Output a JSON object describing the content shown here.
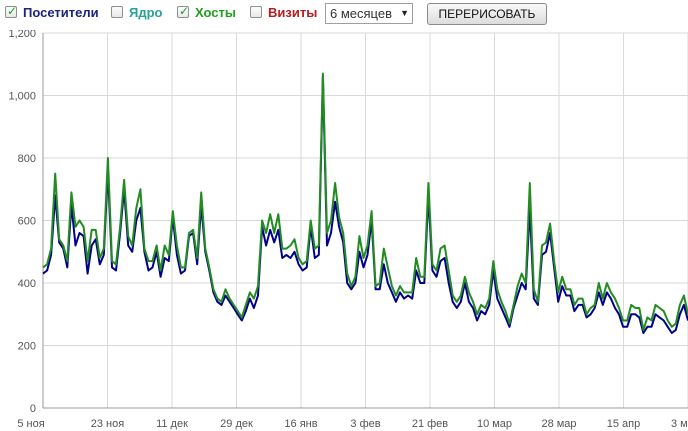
{
  "controls": {
    "visitors": {
      "label": "Посетители",
      "checked": true,
      "color": "#1a237e"
    },
    "core": {
      "label": "Ядро",
      "checked": false,
      "color": "#2aa198"
    },
    "hosts": {
      "label": "Хосты",
      "checked": true,
      "color": "#1e9e1e"
    },
    "visits": {
      "label": "Визиты",
      "checked": false,
      "color": "#b71c1c"
    },
    "period": {
      "value": "6 месяцев"
    },
    "redraw_label": "ПЕРЕРИСОВАТЬ"
  },
  "chart_data": {
    "type": "line",
    "ylim": [
      0,
      1200
    ],
    "yticks": [
      0,
      200,
      400,
      600,
      800,
      1000,
      1200
    ],
    "ytick_labels": [
      "0",
      "200",
      "400",
      "600",
      "800",
      "1,000",
      "1,200"
    ],
    "x_start": "5 ноя",
    "x_ticks": [
      "5 ноя",
      "23 ноя",
      "11 дек",
      "29 дек",
      "16 янв",
      "3 фев",
      "21 фев",
      "10 мар",
      "28 мар",
      "15 апр",
      "3 ма"
    ],
    "x_tick_days": [
      0,
      18,
      36,
      54,
      72,
      90,
      108,
      126,
      144,
      162,
      180
    ],
    "grid": true,
    "series": [
      {
        "color": "#00008b",
        "values": [
          430,
          440,
          490,
          680,
          530,
          510,
          450,
          650,
          520,
          560,
          550,
          430,
          520,
          540,
          460,
          490,
          760,
          450,
          440,
          560,
          700,
          520,
          500,
          600,
          640,
          500,
          440,
          450,
          500,
          420,
          480,
          470,
          610,
          490,
          430,
          440,
          550,
          560,
          460,
          650,
          500,
          440,
          370,
          340,
          330,
          360,
          340,
          320,
          300,
          280,
          310,
          350,
          320,
          360,
          580,
          520,
          570,
          530,
          570,
          480,
          490,
          480,
          500,
          460,
          440,
          450,
          580,
          480,
          490,
          1060,
          520,
          560,
          660,
          580,
          530,
          400,
          380,
          400,
          500,
          450,
          490,
          600,
          380,
          380,
          460,
          400,
          370,
          340,
          370,
          350,
          360,
          350,
          440,
          400,
          400,
          680,
          440,
          420,
          470,
          480,
          400,
          340,
          320,
          340,
          400,
          340,
          320,
          280,
          310,
          300,
          330,
          440,
          350,
          320,
          290,
          260,
          320,
          360,
          400,
          380,
          640,
          350,
          330,
          490,
          500,
          560,
          450,
          340,
          390,
          360,
          360,
          310,
          330,
          330,
          290,
          300,
          320,
          370,
          330,
          370,
          350,
          320,
          300,
          260,
          260,
          300,
          300,
          290,
          240,
          260,
          260,
          300,
          290,
          280,
          260,
          240,
          250,
          300,
          330,
          280
        ]
      },
      {
        "color": "#228b22",
        "values": [
          450,
          460,
          510,
          750,
          540,
          520,
          470,
          690,
          580,
          600,
          580,
          470,
          570,
          570,
          480,
          510,
          800,
          470,
          460,
          580,
          730,
          550,
          520,
          640,
          700,
          510,
          470,
          470,
          520,
          440,
          520,
          490,
          630,
          520,
          450,
          450,
          560,
          570,
          480,
          690,
          510,
          450,
          380,
          350,
          340,
          380,
          350,
          330,
          310,
          290,
          330,
          370,
          350,
          390,
          600,
          560,
          620,
          560,
          620,
          510,
          510,
          520,
          540,
          480,
          460,
          470,
          600,
          510,
          520,
          1070,
          560,
          600,
          720,
          610,
          560,
          430,
          390,
          420,
          550,
          480,
          520,
          630,
          390,
          400,
          510,
          450,
          390,
          360,
          390,
          370,
          370,
          370,
          480,
          420,
          420,
          720,
          460,
          440,
          510,
          520,
          440,
          360,
          340,
          360,
          420,
          370,
          340,
          300,
          330,
          320,
          350,
          470,
          380,
          340,
          310,
          270,
          330,
          390,
          430,
          400,
          720,
          380,
          340,
          520,
          530,
          590,
          470,
          370,
          420,
          380,
          380,
          330,
          350,
          350,
          300,
          320,
          330,
          400,
          350,
          400,
          370,
          350,
          320,
          280,
          280,
          330,
          320,
          320,
          250,
          290,
          280,
          330,
          320,
          310,
          280,
          260,
          270,
          330,
          360,
          300
        ]
      }
    ]
  }
}
